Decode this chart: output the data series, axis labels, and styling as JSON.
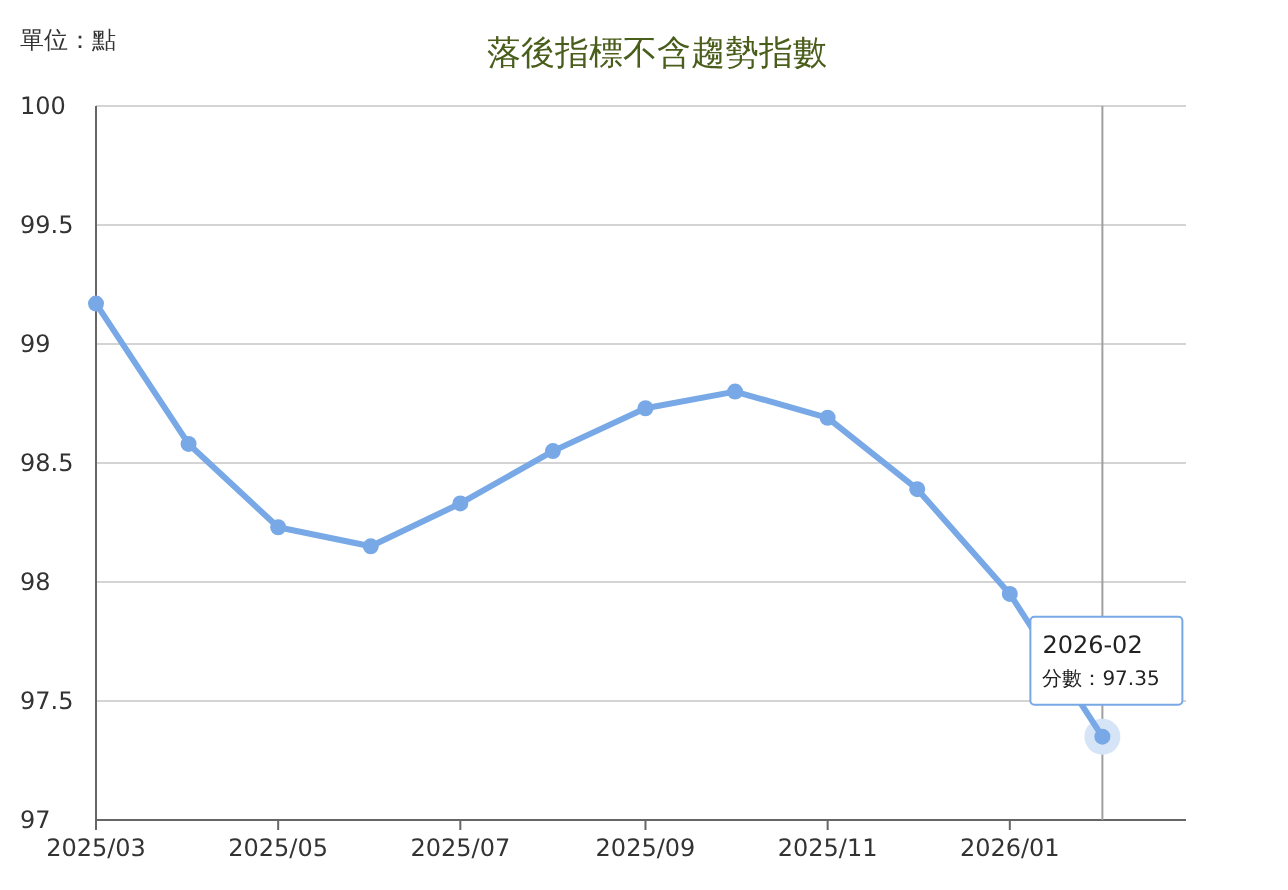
{
  "chart_data": {
    "type": "line",
    "title": "落後指標不含趨勢指數",
    "x": [
      "2025-03",
      "2025-04",
      "2025-05",
      "2025-06",
      "2025-07",
      "2025-08",
      "2025-09",
      "2025-10",
      "2025-11",
      "2025-12",
      "2026-01",
      "2026-02"
    ],
    "series": [
      {
        "color": "#78a9e6",
        "values": [
          99.17,
          98.58,
          98.23,
          98.15,
          98.33,
          98.55,
          98.73,
          98.8,
          98.69,
          98.39,
          97.95,
          97.35
        ]
      }
    ],
    "xlim": [
      "2025-03",
      "2026-03"
    ],
    "xticks": [
      {
        "value": "2025-03",
        "label": "2025/03"
      },
      {
        "value": "2025-05",
        "label": "2025/05"
      },
      {
        "value": "2025-07",
        "label": "2025/07"
      },
      {
        "value": "2025-09",
        "label": "2025/09"
      },
      {
        "value": "2025-11",
        "label": "2025/11"
      },
      {
        "value": "2026-01",
        "label": "2026/01"
      }
    ],
    "ylim": [
      97,
      100
    ],
    "yticks": [
      97,
      97.5,
      98,
      98.5,
      99,
      99.5,
      100
    ],
    "grid": "y",
    "marker": "circle",
    "line_style": "solid",
    "ref_lines": [
      {
        "axis": "x",
        "value": "2026-02",
        "color": "#a0a0a0"
      }
    ],
    "annotations": [
      "單位：點",
      "2026-02",
      "分數：97.35"
    ]
  }
}
